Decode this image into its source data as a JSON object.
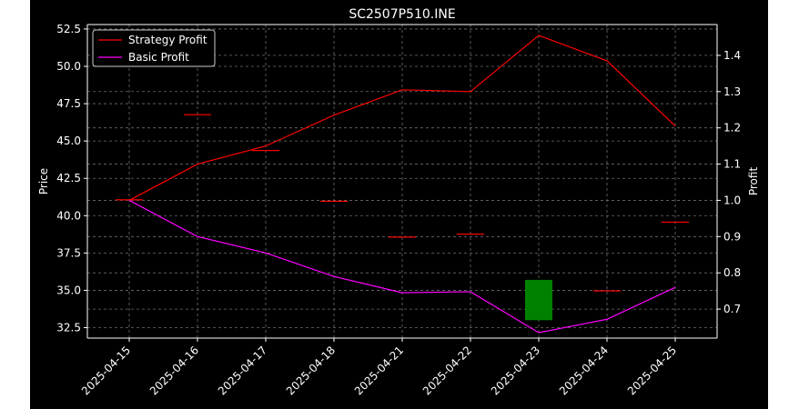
{
  "chart_data": {
    "type": "candlestick+line",
    "title": "SC2507P510.INE",
    "ylabel_left": "Price",
    "ylabel_right": "Profit",
    "ylim_left": [
      31.8,
      52.8
    ],
    "ylim_right": [
      0.62,
      1.485
    ],
    "left_ticks": [
      "32.5",
      "35.0",
      "37.5",
      "40.0",
      "42.5",
      "45.0",
      "47.5",
      "50.0",
      "52.5"
    ],
    "right_ticks": [
      "0.7",
      "0.8",
      "0.9",
      "1.0",
      "1.1",
      "1.2",
      "1.3",
      "1.4"
    ],
    "categories": [
      "2025-04-15",
      "2025-04-16",
      "2025-04-17",
      "2025-04-18",
      "2025-04-21",
      "2025-04-22",
      "2025-04-23",
      "2025-04-24",
      "2025-04-25"
    ],
    "candles": [
      {
        "open": 41.1,
        "high": 41.1,
        "low": 41.1,
        "close": 41.1
      },
      {
        "open": 46.8,
        "high": 46.8,
        "low": 46.8,
        "close": 46.8
      },
      {
        "open": 44.4,
        "high": 44.4,
        "low": 44.4,
        "close": 44.4
      },
      {
        "open": 41.0,
        "high": 41.0,
        "low": 41.0,
        "close": 41.0
      },
      {
        "open": 38.6,
        "high": 38.6,
        "low": 38.6,
        "close": 38.6
      },
      {
        "open": 38.8,
        "high": 38.8,
        "low": 38.8,
        "close": 38.8
      },
      {
        "open": 33.0,
        "high": 35.7,
        "low": 33.0,
        "close": 35.7
      },
      {
        "open": 35.0,
        "high": 35.0,
        "low": 35.0,
        "close": 35.0
      },
      {
        "open": 39.6,
        "high": 39.6,
        "low": 39.6,
        "close": 39.6
      }
    ],
    "series": [
      {
        "name": "Strategy Profit",
        "color": "#ff0000",
        "values": [
          1.0,
          1.1,
          1.15,
          1.235,
          1.305,
          1.3,
          1.455,
          1.385,
          1.205
        ]
      },
      {
        "name": "Basic Profit",
        "color": "#ff00ff",
        "values": [
          1.0,
          0.9,
          0.855,
          0.79,
          0.745,
          0.748,
          0.635,
          0.672,
          0.76
        ]
      }
    ],
    "legend_position": "top-left",
    "grid": true,
    "colors": {
      "background": "#000000",
      "up": "#008000",
      "down": "#ff0000",
      "text": "#ffffff",
      "grid": "#6e6e6e"
    }
  }
}
